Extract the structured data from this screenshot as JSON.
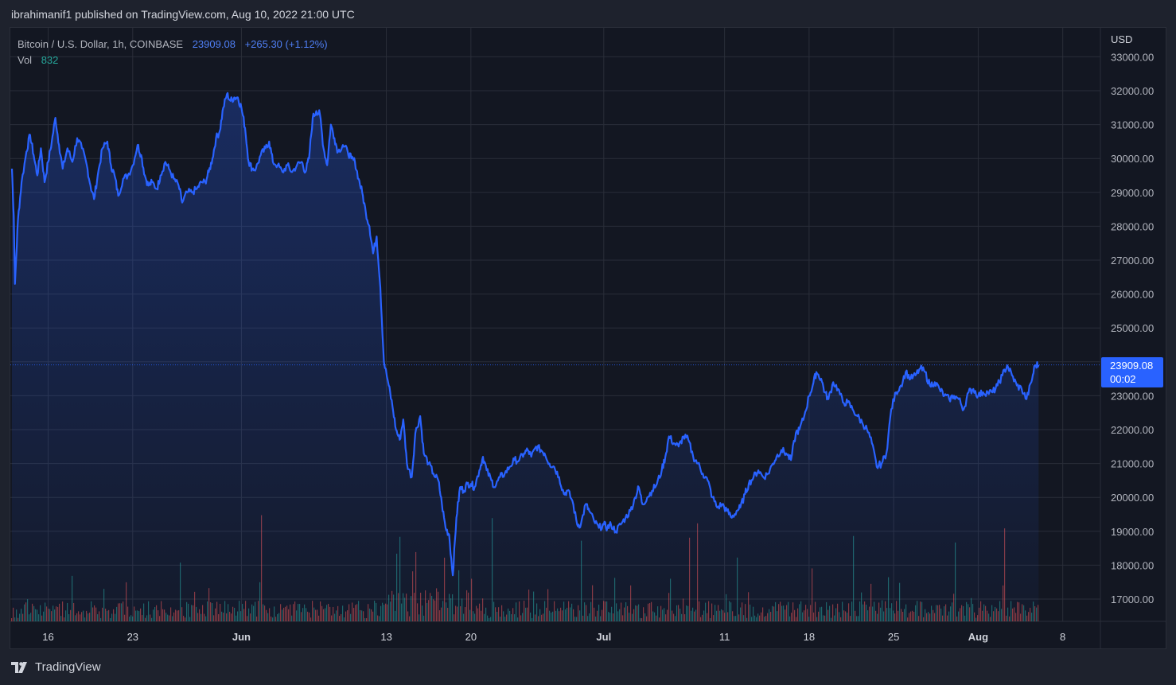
{
  "header": {
    "publish_line": "ibrahimanif1 published on TradingView.com, Aug 10, 2022 21:00 UTC"
  },
  "legend": {
    "symbol": "Bitcoin / U.S. Dollar, 1h, COINBASE",
    "last_price": "23909.08",
    "change": "+265.30 (+1.12%)",
    "vol_label": "Vol",
    "vol_value": "832"
  },
  "price_axis": {
    "currency": "USD",
    "current_price_label": "23909.08",
    "countdown": "00:02"
  },
  "footer": {
    "brand": "TradingView"
  },
  "colors": {
    "line": "#2962ff",
    "background": "#131722",
    "up_volume": "#26a69a",
    "down_volume": "#ef5350",
    "grid": "#2a2e39"
  },
  "chart_data": {
    "type": "area",
    "title": "",
    "xlabel": "",
    "ylabel": "",
    "x_unit": "day index from May 13, 2022",
    "ylim": [
      16200,
      33500
    ],
    "yticks": [
      17000,
      18000,
      19000,
      20000,
      21000,
      22000,
      23000,
      24000,
      25000,
      26000,
      27000,
      28000,
      29000,
      30000,
      31000,
      32000,
      33000
    ],
    "ytick_labels": [
      "17000.00",
      "18000.00",
      "19000.00",
      "20000.00",
      "21000.00",
      "22000.00",
      "23000.00",
      "24000.00",
      "25000.00",
      "26000.00",
      "27000.00",
      "28000.00",
      "29000.00",
      "30000.00",
      "31000.00",
      "32000.00",
      "33000.00"
    ],
    "xlim": [
      0,
      90.3
    ],
    "xticks": [
      {
        "label": "16",
        "x": 3
      },
      {
        "label": "23",
        "x": 10
      },
      {
        "label": "Jun",
        "x": 19
      },
      {
        "label": "13",
        "x": 31
      },
      {
        "label": "20",
        "x": 38
      },
      {
        "label": "Jul",
        "x": 49
      },
      {
        "label": "11",
        "x": 59
      },
      {
        "label": "18",
        "x": 66
      },
      {
        "label": "25",
        "x": 73
      },
      {
        "label": "Aug",
        "x": 80
      },
      {
        "label": "8",
        "x": 87
      }
    ],
    "grid": true,
    "series": [
      {
        "points": [
          [
            0,
            29700
          ],
          [
            0.15,
            28300
          ],
          [
            0.25,
            26300
          ],
          [
            0.5,
            28200
          ],
          [
            0.8,
            29300
          ],
          [
            1.2,
            30200
          ],
          [
            1.5,
            30700
          ],
          [
            1.8,
            30100
          ],
          [
            2.1,
            29500
          ],
          [
            2.4,
            30300
          ],
          [
            2.7,
            29300
          ],
          [
            3,
            29900
          ],
          [
            3.3,
            30500
          ],
          [
            3.6,
            31200
          ],
          [
            3.9,
            30400
          ],
          [
            4.2,
            29700
          ],
          [
            4.6,
            30300
          ],
          [
            5,
            29900
          ],
          [
            5.4,
            30600
          ],
          [
            5.8,
            30300
          ],
          [
            6.2,
            29800
          ],
          [
            6.5,
            29200
          ],
          [
            6.8,
            28800
          ],
          [
            7.1,
            29500
          ],
          [
            7.5,
            30300
          ],
          [
            7.9,
            30500
          ],
          [
            8.2,
            29800
          ],
          [
            8.5,
            29500
          ],
          [
            8.8,
            28900
          ],
          [
            9.2,
            29400
          ],
          [
            9.6,
            29500
          ],
          [
            10,
            29800
          ],
          [
            10.4,
            30400
          ],
          [
            10.7,
            30100
          ],
          [
            11,
            29500
          ],
          [
            11.3,
            29200
          ],
          [
            11.6,
            29300
          ],
          [
            12,
            29100
          ],
          [
            12.3,
            29500
          ],
          [
            12.7,
            29900
          ],
          [
            13,
            29700
          ],
          [
            13.4,
            29400
          ],
          [
            13.8,
            29200
          ],
          [
            14.1,
            28700
          ],
          [
            14.5,
            29000
          ],
          [
            14.9,
            29000
          ],
          [
            15.3,
            29100
          ],
          [
            15.7,
            29300
          ],
          [
            16,
            29300
          ],
          [
            16.3,
            29600
          ],
          [
            16.6,
            30000
          ],
          [
            16.9,
            30600
          ],
          [
            17.2,
            30800
          ],
          [
            17.5,
            31500
          ],
          [
            17.8,
            31900
          ],
          [
            18.1,
            31700
          ],
          [
            18.4,
            31800
          ],
          [
            18.7,
            31800
          ],
          [
            19,
            31500
          ],
          [
            19.3,
            30900
          ],
          [
            19.6,
            29900
          ],
          [
            19.9,
            29700
          ],
          [
            20.2,
            29700
          ],
          [
            20.6,
            30100
          ],
          [
            21,
            30300
          ],
          [
            21.3,
            30500
          ],
          [
            21.6,
            29900
          ],
          [
            22,
            29800
          ],
          [
            22.4,
            29600
          ],
          [
            22.8,
            29800
          ],
          [
            23.2,
            29600
          ],
          [
            23.6,
            29800
          ],
          [
            24,
            29900
          ],
          [
            24.3,
            29600
          ],
          [
            24.6,
            30000
          ],
          [
            24.9,
            31200
          ],
          [
            25.2,
            31400
          ],
          [
            25.5,
            31300
          ],
          [
            25.8,
            30300
          ],
          [
            26.1,
            29800
          ],
          [
            26.4,
            31000
          ],
          [
            26.7,
            30600
          ],
          [
            27,
            30200
          ],
          [
            27.4,
            30400
          ],
          [
            27.8,
            30200
          ],
          [
            28.1,
            30000
          ],
          [
            28.4,
            29900
          ],
          [
            28.7,
            29400
          ],
          [
            29,
            29000
          ],
          [
            29.3,
            28400
          ],
          [
            29.6,
            28000
          ],
          [
            29.9,
            27200
          ],
          [
            30.2,
            27700
          ],
          [
            30.5,
            26200
          ],
          [
            30.8,
            24000
          ],
          [
            31.2,
            23300
          ],
          [
            31.5,
            22700
          ],
          [
            31.8,
            22000
          ],
          [
            32.1,
            21700
          ],
          [
            32.4,
            22300
          ],
          [
            32.7,
            21000
          ],
          [
            33.1,
            20600
          ],
          [
            33.4,
            21900
          ],
          [
            33.8,
            22400
          ],
          [
            34.1,
            21300
          ],
          [
            34.5,
            21000
          ],
          [
            34.9,
            20700
          ],
          [
            35.3,
            20500
          ],
          [
            35.6,
            19800
          ],
          [
            35.9,
            19100
          ],
          [
            36.2,
            18900
          ],
          [
            36.5,
            17700
          ],
          [
            36.8,
            19400
          ],
          [
            37.1,
            20300
          ],
          [
            37.4,
            20200
          ],
          [
            37.7,
            20400
          ],
          [
            38,
            20400
          ],
          [
            38.3,
            20300
          ],
          [
            38.7,
            20800
          ],
          [
            39,
            21200
          ],
          [
            39.3,
            20800
          ],
          [
            39.7,
            20500
          ],
          [
            40,
            20300
          ],
          [
            40.4,
            20600
          ],
          [
            40.8,
            20700
          ],
          [
            41.2,
            20900
          ],
          [
            41.6,
            21100
          ],
          [
            42,
            21100
          ],
          [
            42.4,
            21300
          ],
          [
            42.7,
            21400
          ],
          [
            43,
            21200
          ],
          [
            43.4,
            21500
          ],
          [
            43.8,
            21400
          ],
          [
            44.1,
            21300
          ],
          [
            44.5,
            21000
          ],
          [
            44.9,
            20900
          ],
          [
            45.3,
            20600
          ],
          [
            45.7,
            20100
          ],
          [
            46,
            20200
          ],
          [
            46.4,
            19900
          ],
          [
            46.8,
            19200
          ],
          [
            47.1,
            19200
          ],
          [
            47.5,
            19800
          ],
          [
            47.8,
            19600
          ],
          [
            48.2,
            19300
          ],
          [
            48.6,
            19100
          ],
          [
            49,
            19200
          ],
          [
            49.3,
            19100
          ],
          [
            49.6,
            19200
          ],
          [
            50,
            19000
          ],
          [
            50.4,
            19200
          ],
          [
            50.8,
            19400
          ],
          [
            51.2,
            19600
          ],
          [
            51.6,
            20000
          ],
          [
            51.9,
            20300
          ],
          [
            52.2,
            19800
          ],
          [
            52.6,
            20000
          ],
          [
            53,
            20200
          ],
          [
            53.4,
            20400
          ],
          [
            53.8,
            20800
          ],
          [
            54.1,
            21200
          ],
          [
            54.4,
            21800
          ],
          [
            54.8,
            21600
          ],
          [
            55.2,
            21500
          ],
          [
            55.6,
            21800
          ],
          [
            56,
            21700
          ],
          [
            56.4,
            21200
          ],
          [
            56.8,
            21000
          ],
          [
            57.2,
            20700
          ],
          [
            57.6,
            20500
          ],
          [
            58,
            20000
          ],
          [
            58.4,
            19700
          ],
          [
            58.8,
            19800
          ],
          [
            59.2,
            19600
          ],
          [
            59.6,
            19400
          ],
          [
            60,
            19600
          ],
          [
            60.3,
            19700
          ],
          [
            60.7,
            20100
          ],
          [
            61,
            20400
          ],
          [
            61.4,
            20600
          ],
          [
            61.8,
            20800
          ],
          [
            62.2,
            20600
          ],
          [
            62.6,
            20700
          ],
          [
            63,
            21000
          ],
          [
            63.3,
            21200
          ],
          [
            63.7,
            21400
          ],
          [
            64.1,
            21300
          ],
          [
            64.5,
            21100
          ],
          [
            64.9,
            21900
          ],
          [
            65.2,
            22000
          ],
          [
            65.6,
            22400
          ],
          [
            66,
            23000
          ],
          [
            66.3,
            23300
          ],
          [
            66.6,
            23700
          ],
          [
            67,
            23500
          ],
          [
            67.3,
            23100
          ],
          [
            67.6,
            22900
          ],
          [
            68,
            23400
          ],
          [
            68.4,
            23200
          ],
          [
            68.8,
            22800
          ],
          [
            69.2,
            22800
          ],
          [
            69.6,
            22600
          ],
          [
            70,
            22400
          ],
          [
            70.4,
            22200
          ],
          [
            70.8,
            22000
          ],
          [
            71.2,
            21600
          ],
          [
            71.6,
            20900
          ],
          [
            72,
            21000
          ],
          [
            72.4,
            21300
          ],
          [
            72.8,
            22600
          ],
          [
            73.2,
            23100
          ],
          [
            73.6,
            23300
          ],
          [
            74,
            23700
          ],
          [
            74.4,
            23500
          ],
          [
            74.8,
            23600
          ],
          [
            75.2,
            23800
          ],
          [
            75.6,
            23700
          ],
          [
            76,
            23300
          ],
          [
            76.4,
            23400
          ],
          [
            76.8,
            23200
          ],
          [
            77.2,
            23000
          ],
          [
            77.6,
            22900
          ],
          [
            78,
            23000
          ],
          [
            78.4,
            22900
          ],
          [
            78.8,
            22600
          ],
          [
            79.2,
            23100
          ],
          [
            79.6,
            23200
          ],
          [
            80,
            23000
          ],
          [
            80.4,
            23100
          ],
          [
            80.8,
            23100
          ],
          [
            81.2,
            23100
          ],
          [
            81.6,
            23300
          ],
          [
            82,
            23600
          ],
          [
            82.4,
            23900
          ],
          [
            82.8,
            23600
          ],
          [
            83.2,
            23300
          ],
          [
            83.6,
            23200
          ],
          [
            84,
            22900
          ],
          [
            84.4,
            23400
          ],
          [
            84.7,
            23900
          ],
          [
            85,
            23909
          ]
        ]
      }
    ],
    "volume_note": "volume bars along the bottom of the pane, green up / red down"
  }
}
